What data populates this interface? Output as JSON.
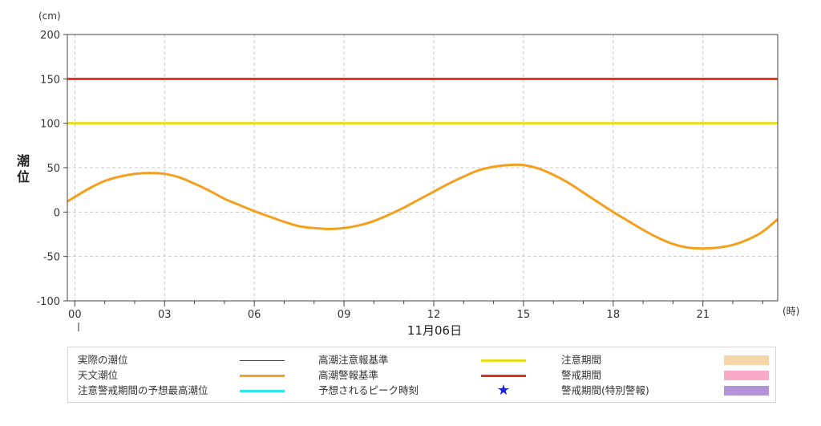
{
  "chart_data": {
    "type": "line",
    "ylabel": "潮位",
    "yunit": "(cm)",
    "xunit": "(時)",
    "date_label": "11月06日",
    "ylim": [
      -100,
      200
    ],
    "yticks": [
      200,
      150,
      100,
      50,
      0,
      -50,
      -100
    ],
    "xlim": [
      -0.25,
      23.5
    ],
    "xticks": [
      "00",
      "03",
      "06",
      "09",
      "12",
      "15",
      "18",
      "21"
    ],
    "grid": true,
    "series": [
      {
        "name": "天文潮位",
        "color": "#f2a01e",
        "x": [
          -0.25,
          0.5,
          1.0,
          1.5,
          2.0,
          2.5,
          3.0,
          3.5,
          4.0,
          4.5,
          5.0,
          5.5,
          6.0,
          6.5,
          7.0,
          7.5,
          8.0,
          8.5,
          9.0,
          9.5,
          10.0,
          10.5,
          11.0,
          11.5,
          12.0,
          12.5,
          13.0,
          13.5,
          14.0,
          14.5,
          15.0,
          15.5,
          16.0,
          16.5,
          17.0,
          17.5,
          18.0,
          18.5,
          19.0,
          19.5,
          20.0,
          20.5,
          21.0,
          21.5,
          22.0,
          22.5,
          23.0,
          23.5
        ],
        "y": [
          12,
          27,
          35,
          40,
          43,
          44,
          43,
          39,
          32,
          24,
          15,
          8,
          1,
          -5,
          -11,
          -16,
          -18,
          -19,
          -18,
          -15,
          -10,
          -3,
          5,
          14,
          23,
          32,
          40,
          47,
          51,
          53,
          53,
          49,
          42,
          33,
          22,
          11,
          0,
          -10,
          -20,
          -29,
          -36,
          -40,
          -41,
          -40,
          -37,
          -31,
          -22,
          -8
        ]
      }
    ],
    "reference_lines": [
      {
        "name": "高潮注意報基準",
        "value": 100,
        "color": "#e8de1e"
      },
      {
        "name": "高潮警報基準",
        "value": 150,
        "color": "#e1321e"
      }
    ]
  },
  "legend": {
    "items": [
      {
        "label": "実際の潮位",
        "kind": "line",
        "color": "#4b2fb8",
        "width": 1
      },
      {
        "label": "天文潮位",
        "kind": "line",
        "color": "#f2a01e",
        "width": 3
      },
      {
        "label": "注意警戒期間の予想最高潮位",
        "kind": "line",
        "color": "#2ee6e6",
        "width": 3
      },
      {
        "label": "高潮注意報基準",
        "kind": "line",
        "color": "#e8de1e",
        "width": 3
      },
      {
        "label": "高潮警報基準",
        "kind": "line",
        "color": "#e1321e",
        "width": 3
      },
      {
        "label": "予想されるピーク時刻",
        "kind": "star",
        "color": "#1a25d8",
        "symbol": "★"
      },
      {
        "label": "注意期間",
        "kind": "box",
        "color": "#f6d6a8"
      },
      {
        "label": "警戒期間",
        "kind": "box",
        "color": "#f8aac6"
      },
      {
        "label": "警戒期間(特別警報)",
        "kind": "box",
        "color": "#b394d8"
      }
    ]
  }
}
